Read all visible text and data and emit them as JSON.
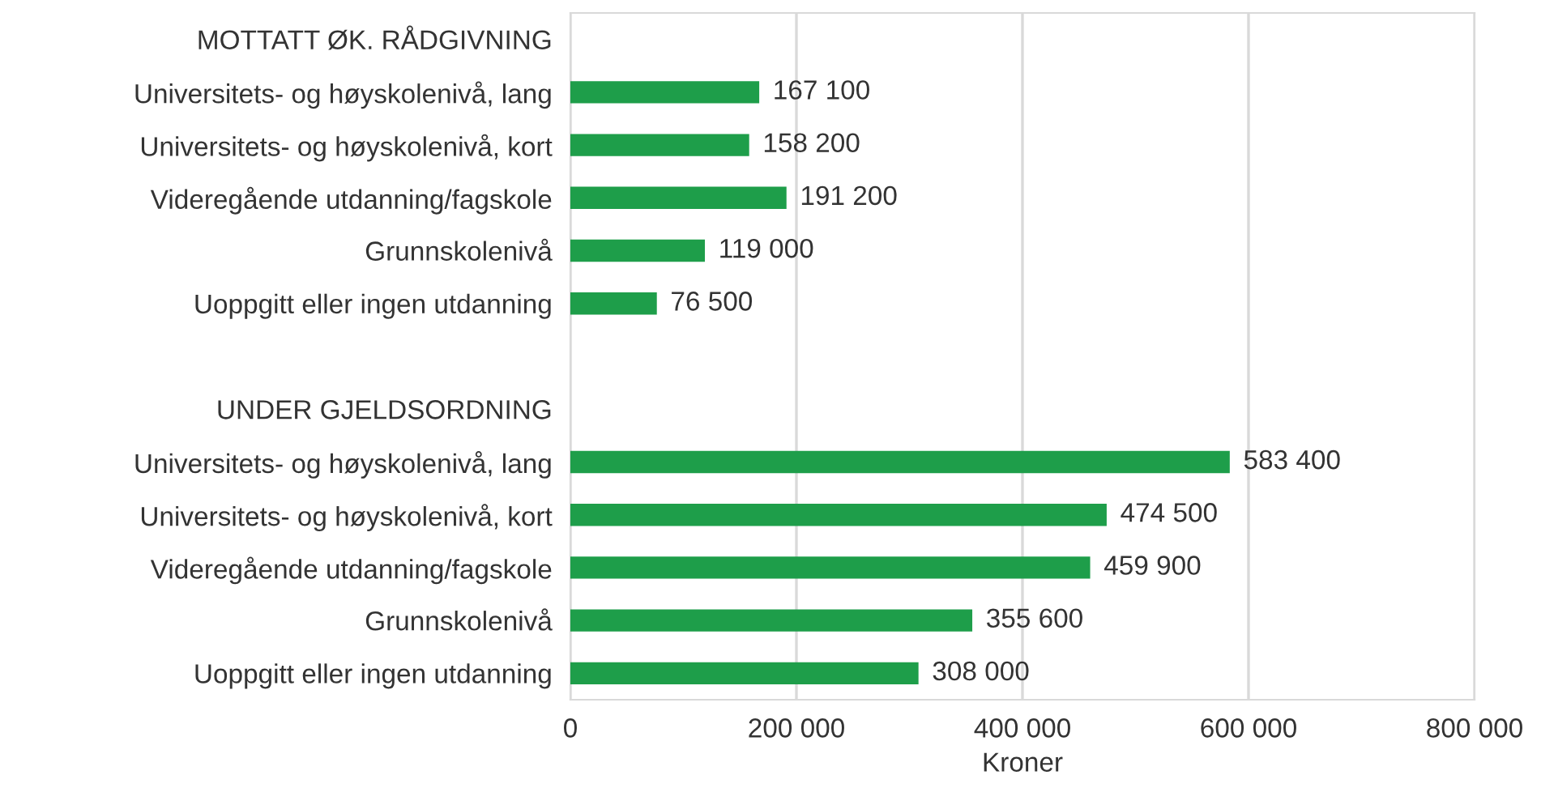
{
  "chart_data": {
    "type": "bar",
    "orientation": "horizontal",
    "xlabel": "Kroner",
    "categories": [
      "MOTTATT ØK. RÅDGIVNING",
      "Universitets- og høyskolenivå, lang",
      "Universitets- og høyskolenivå, kort",
      "Videregående utdanning/fagskole",
      "Grunnskolenivå",
      "Uoppgitt eller ingen utdanning",
      null,
      "UNDER GJELDSORDNING",
      "Universitets- og høyskolenivå, lang",
      "Universitets- og høyskolenivå, kort",
      "Videregående utdanning/fagskole",
      "Grunnskolenivå",
      "Uoppgitt eller ingen utdanning"
    ],
    "values": [
      null,
      167100,
      158200,
      191200,
      119000,
      76500,
      null,
      null,
      583400,
      474500,
      459900,
      355600,
      308000
    ],
    "value_labels": [
      null,
      "167 100",
      "158 200",
      "191 200",
      "119 000",
      "76 500",
      null,
      null,
      "583 400",
      "474 500",
      "459 900",
      "355 600",
      "308 000"
    ],
    "color": "#1e9e4a",
    "xlim": [
      0,
      800000
    ],
    "xticks": [
      0,
      {
        "value": 200000,
        "label": "200 000"
      },
      {
        "value": 400000,
        "label": "400 000"
      },
      {
        "value": 600000,
        "label": "600 000"
      },
      {
        "value": 800000,
        "label": "800 000"
      }
    ],
    "grid": "x",
    "legend": false
  }
}
